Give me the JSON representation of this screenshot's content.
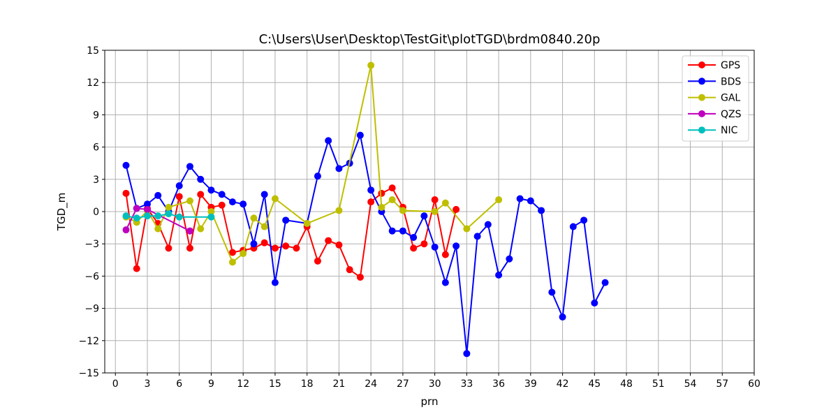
{
  "chart_data": {
    "type": "line",
    "title": "C:\\Users\\User\\Desktop\\TestGit\\plotTGD\\brdm0840.20p",
    "xlabel": "prn",
    "ylabel": "TGD_m",
    "xlim": [
      -1,
      60
    ],
    "ylim": [
      -15,
      15
    ],
    "xticks": [
      0,
      3,
      6,
      9,
      12,
      15,
      18,
      21,
      24,
      27,
      30,
      33,
      36,
      39,
      42,
      45,
      48,
      51,
      54,
      57,
      60
    ],
    "yticks": [
      -15,
      -12,
      -9,
      -6,
      -3,
      0,
      3,
      6,
      9,
      12,
      15
    ],
    "grid": true,
    "legend_position": "top-right",
    "series": [
      {
        "name": "GPS",
        "color": "#ff0000",
        "x": [
          1,
          2,
          3,
          4,
          5,
          6,
          7,
          8,
          9,
          10,
          11,
          12,
          13,
          14,
          15,
          16,
          17,
          18,
          19,
          20,
          21,
          22,
          23,
          24,
          25,
          26,
          27,
          28,
          29,
          30,
          31,
          32
        ],
        "y": [
          1.7,
          -5.3,
          0.3,
          -1.1,
          -3.4,
          1.4,
          -3.4,
          1.6,
          0.4,
          0.6,
          -3.8,
          -3.6,
          -3.4,
          -2.9,
          -3.4,
          -3.2,
          -3.4,
          -1.4,
          -4.6,
          -2.7,
          -3.1,
          -5.4,
          -6.1,
          0.9,
          1.7,
          2.2,
          0.4,
          -3.4,
          -3.0,
          1.1,
          -4.0,
          0.2
        ]
      },
      {
        "name": "BDS",
        "color": "#0000ff",
        "x": [
          1,
          2,
          3,
          4,
          5,
          6,
          7,
          8,
          9,
          10,
          11,
          12,
          13,
          14,
          15,
          16,
          18,
          19,
          20,
          21,
          22,
          23,
          24,
          25,
          26,
          27,
          28,
          29,
          30,
          31,
          32,
          33,
          34,
          35,
          36,
          37,
          38,
          39,
          40,
          41,
          42,
          43,
          44,
          45,
          46
        ],
        "y": [
          4.3,
          0.3,
          0.7,
          1.5,
          0.0,
          2.4,
          4.2,
          3.0,
          2.0,
          1.6,
          0.9,
          0.7,
          -3.0,
          1.6,
          -6.6,
          -0.8,
          -1.1,
          3.3,
          6.6,
          4.0,
          4.5,
          7.1,
          2.0,
          0.0,
          -1.8,
          -1.8,
          -2.4,
          -0.4,
          -3.3,
          -6.6,
          -3.2,
          -13.2,
          -2.3,
          -1.2,
          -5.9,
          -4.4,
          1.2,
          1.0,
          0.1,
          -7.5,
          -9.8,
          -1.4,
          -0.8,
          -8.5,
          -6.6
        ]
      },
      {
        "name": "GAL",
        "color": "#bfbf00",
        "x": [
          1,
          2,
          3,
          4,
          5,
          7,
          8,
          9,
          11,
          12,
          13,
          14,
          15,
          18,
          21,
          24,
          25,
          26,
          27,
          30,
          31,
          33,
          36
        ],
        "y": [
          -0.5,
          -1.0,
          0.1,
          -1.6,
          0.4,
          1.0,
          -1.6,
          0.0,
          -4.7,
          -3.9,
          -0.6,
          -1.4,
          1.2,
          -1.1,
          0.1,
          13.6,
          0.4,
          1.1,
          0.1,
          0.0,
          0.8,
          -1.6,
          1.1
        ]
      },
      {
        "name": "QZS",
        "color": "#bf00bf",
        "x": [
          1,
          2,
          3,
          7
        ],
        "y": [
          -1.7,
          0.3,
          0.2,
          -1.8
        ]
      },
      {
        "name": "NIC",
        "color": "#00bfbf",
        "x": [
          1,
          2,
          3,
          4,
          5,
          6,
          9
        ],
        "y": [
          -0.4,
          -0.6,
          -0.4,
          -0.4,
          -0.2,
          -0.5,
          -0.5
        ]
      }
    ]
  }
}
